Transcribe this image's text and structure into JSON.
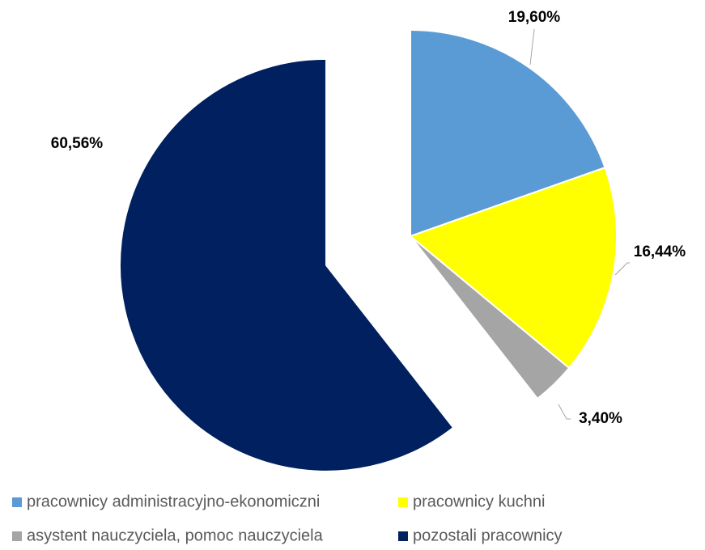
{
  "chart_data": {
    "type": "pie",
    "categories": [
      "pracownicy administracyjno-ekonomiczni",
      "pracownicy kuchni",
      "asystent nauczyciela, pomoc nauczyciela",
      "pozostali pracownicy"
    ],
    "values": [
      19.6,
      16.44,
      3.4,
      60.56
    ],
    "value_labels": [
      "19,60%",
      "16,44%",
      "3,40%",
      "60,56%"
    ],
    "colors": [
      "#5B9BD5",
      "#FFFF00",
      "#A5A5A5",
      "#002060"
    ],
    "legend": "bottom"
  }
}
